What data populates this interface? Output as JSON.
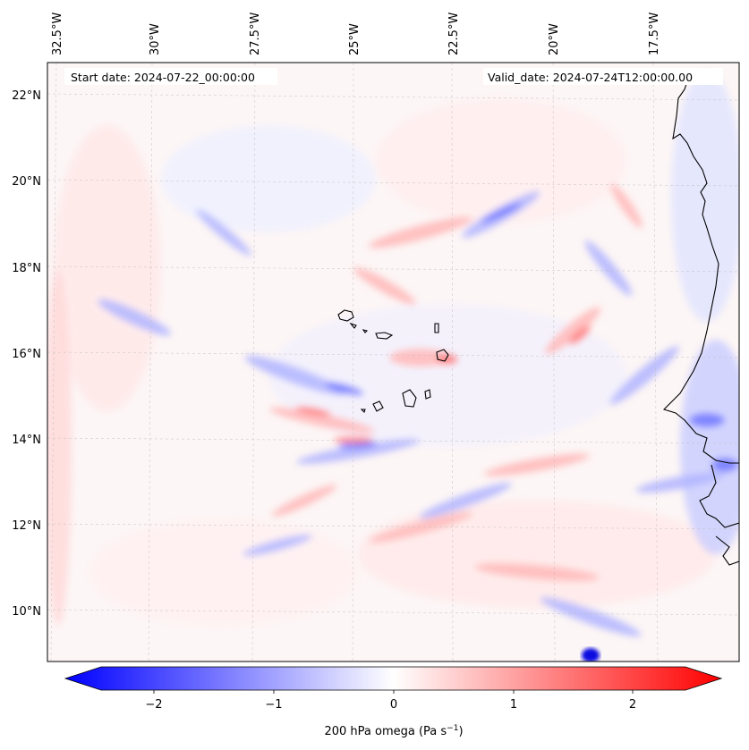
{
  "map": {
    "start_date_label": "Start date: 2024-07-22_00:00:00",
    "valid_date_label": "Valid_date: 2024-07-24T12:00:00.00",
    "lon_labels": [
      "32.5°W",
      "30°W",
      "27.5°W",
      "25°W",
      "22.5°W",
      "20°W",
      "17.5°W"
    ],
    "lat_labels": [
      "22°N",
      "20°N",
      "18°N",
      "16°N",
      "14°N",
      "12°N",
      "10°N"
    ],
    "field_variable": "200 hPa omega"
  },
  "colorbar": {
    "ticks": [
      "−2",
      "−1",
      "0",
      "1",
      "2"
    ],
    "label": "200 hPa omega (Pa s",
    "label_exponent": "−1",
    "label_close": ")",
    "range": [
      -2.6,
      2.6
    ],
    "colors": {
      "negative": "#0000ff",
      "zero": "#ffffff",
      "positive": "#ff0000"
    }
  }
}
